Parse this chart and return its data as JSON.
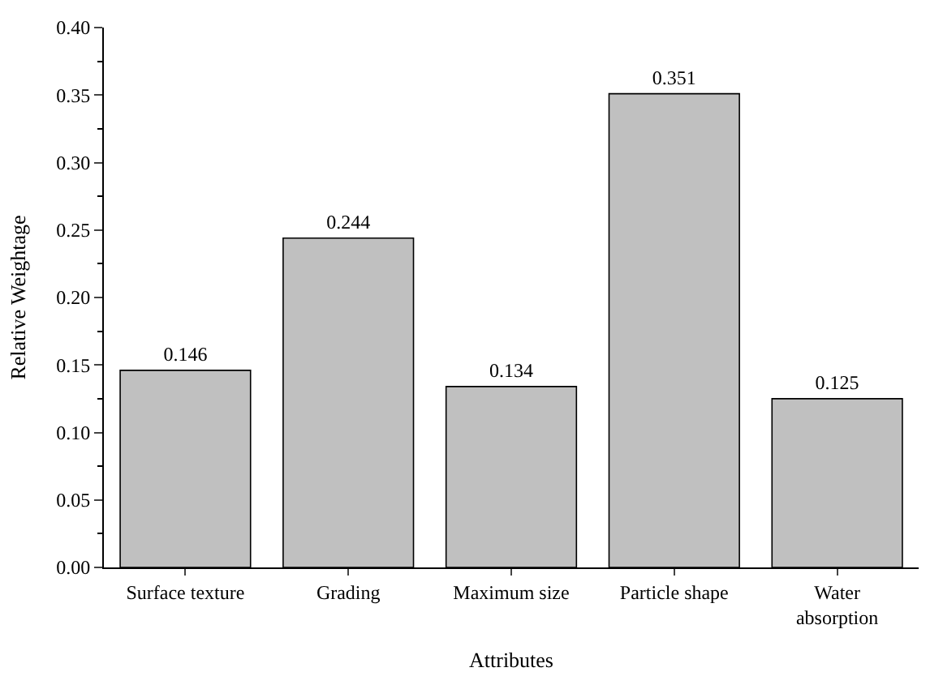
{
  "chart_data": {
    "type": "bar",
    "xlabel": "Attributes",
    "ylabel": "Relative Weightage",
    "categories": [
      "Surface texture",
      "Grading",
      "Maximum size",
      "Particle shape",
      "Water\nabsorption"
    ],
    "values": [
      0.146,
      0.244,
      0.134,
      0.351,
      0.125
    ],
    "color": "#c0c0c0",
    "data_labels": true,
    "ylim": [
      0,
      0.4
    ],
    "yticks": [
      {
        "value": 0,
        "label": "0.00"
      },
      {
        "value": 0.05,
        "label": "0.05"
      },
      {
        "value": 0.1,
        "label": "0.10"
      },
      {
        "value": 0.15,
        "label": "0.15"
      },
      {
        "value": 0.2,
        "label": "0.20"
      },
      {
        "value": 0.25,
        "label": "0.25"
      },
      {
        "value": 0.3,
        "label": "0.30"
      },
      {
        "value": 0.35,
        "label": "0.35"
      },
      {
        "value": 0.4,
        "label": "0.40"
      }
    ]
  }
}
